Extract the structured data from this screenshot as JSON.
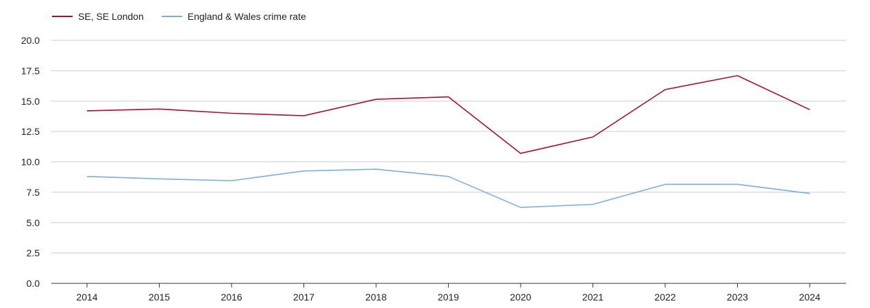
{
  "chart_data": {
    "type": "line",
    "x": [
      "2014",
      "2015",
      "2016",
      "2017",
      "2018",
      "2019",
      "2020",
      "2021",
      "2022",
      "2023",
      "2024"
    ],
    "series": [
      {
        "name": "SE, SE London",
        "color": "#a50d35",
        "values": [
          14.2,
          14.35,
          14.0,
          13.8,
          15.15,
          15.35,
          10.7,
          12.05,
          15.95,
          17.1,
          14.3
        ]
      },
      {
        "name": "England & Wales crime rate",
        "color": "#7bafd4",
        "values": [
          8.8,
          8.6,
          8.45,
          9.25,
          9.4,
          8.8,
          6.25,
          6.5,
          8.15,
          8.15,
          7.4
        ]
      }
    ],
    "yticks": [
      "0.0",
      "2.5",
      "5.0",
      "7.5",
      "10.0",
      "12.5",
      "15.0",
      "17.5",
      "20.0"
    ],
    "ylim": [
      0,
      20
    ],
    "grid": true,
    "legend_position": "top-left"
  }
}
